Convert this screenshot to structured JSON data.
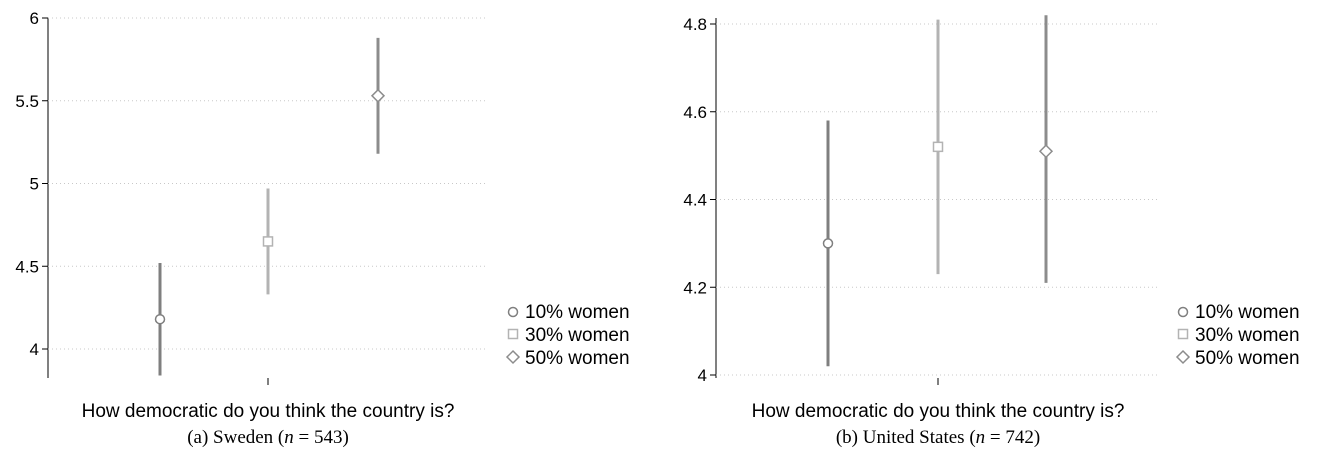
{
  "chart_data": [
    {
      "type": "scatter",
      "caption_prefix": "(a) Sweden (",
      "caption_n": "n",
      "caption_suffix": " = 543)",
      "xlabel": "How democratic do you think the country is?",
      "ylabel": "",
      "ylim": [
        3.85,
        6.0
      ],
      "yticks": [
        "4",
        "4.5",
        "5",
        "5.5",
        "6"
      ],
      "grid": true,
      "legend_position": "right",
      "series": [
        {
          "name": "10% women",
          "marker": "circle",
          "color": "#7f7f7f",
          "estimate": 4.18,
          "ci": [
            3.84,
            4.52
          ]
        },
        {
          "name": "30% women",
          "marker": "square",
          "color": "#b3b3b3",
          "estimate": 4.65,
          "ci": [
            4.33,
            4.97
          ]
        },
        {
          "name": "50% women",
          "marker": "diamond",
          "color": "#8c8c8c",
          "estimate": 5.53,
          "ci": [
            5.18,
            5.88
          ]
        }
      ]
    },
    {
      "type": "scatter",
      "caption_prefix": "(b) United States (",
      "caption_n": "n",
      "caption_suffix": " = 742)",
      "xlabel": "How democratic do you think the country is?",
      "ylabel": "",
      "ylim": [
        4.0,
        4.82
      ],
      "yticks": [
        "4",
        "4.2",
        "4.4",
        "4.6",
        "4.8"
      ],
      "grid": true,
      "legend_position": "right",
      "series": [
        {
          "name": "10% women",
          "marker": "circle",
          "color": "#7f7f7f",
          "estimate": 4.3,
          "ci": [
            4.02,
            4.58
          ]
        },
        {
          "name": "30% women",
          "marker": "square",
          "color": "#b3b3b3",
          "estimate": 4.52,
          "ci": [
            4.23,
            4.81
          ]
        },
        {
          "name": "50% women",
          "marker": "diamond",
          "color": "#8c8c8c",
          "estimate": 4.51,
          "ci": [
            4.21,
            4.82
          ]
        }
      ]
    }
  ]
}
